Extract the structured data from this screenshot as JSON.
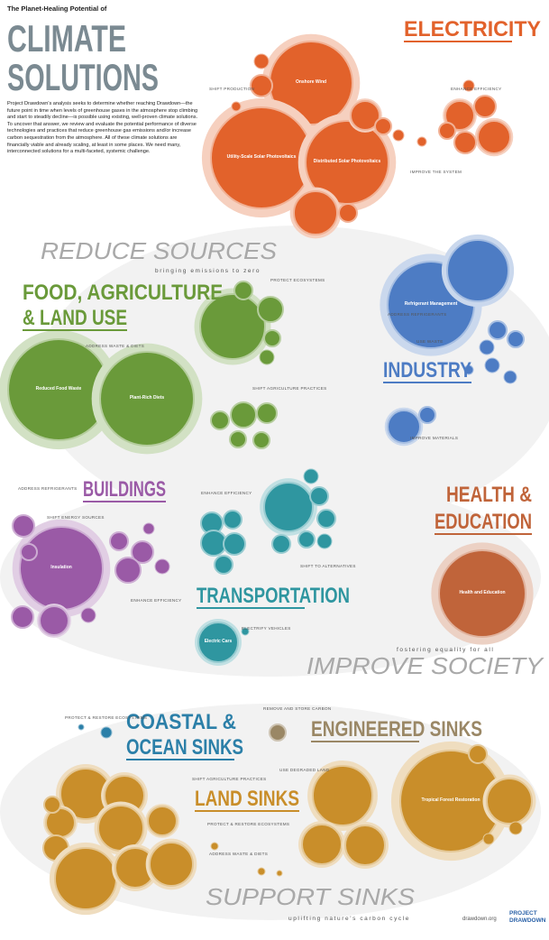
{
  "header": {
    "kicker": "The Planet-Healing Potential of",
    "title_lines": [
      "CLIMATE",
      "SOLUTIONS"
    ],
    "intro": "Project Drawdown's analysis seeks to determine whether reaching Drawdown—the future point in time when levels of greenhouse gases in the atmosphere stop climbing and start to steadily decline—is possible using existing, well-proven climate solutions. To uncover that answer, we review and evaluate the potential performance of diverse technologies and practices that reduce greenhouse gas emissions and/or increase carbon sequestration from the atmosphere. All of these climate solutions are financially viable and already scaling, at least in some places. We need many, interconnected solutions for a multi-faceted, systemic challenge."
  },
  "sections": [
    {
      "heading_lines": [
        "REDUCE SOURCES"
      ],
      "tagline": "bringing emissions to zero"
    },
    {
      "heading_lines": [
        "IMPROVE SOCIETY"
      ],
      "tagline": "fostering equality for all"
    },
    {
      "heading_lines": [
        "SUPPORT SINKS"
      ],
      "tagline": "uplifting nature's carbon cycle"
    }
  ],
  "categories": [
    {
      "heading_lines": [
        "ELECTRICITY"
      ],
      "color": "#e2622b",
      "groups": [
        "ENHANCE EFFICIENCY",
        "SHIFT PRODUCTION",
        "IMPROVE THE SYSTEM"
      ],
      "circles": [
        "Onshore Wind",
        "Utility-Scale Solar Photovoltaics",
        "Distributed Solar Photovoltaics"
      ]
    },
    {
      "heading_lines": [
        "FOOD, AGRICULTURE,",
        "& LAND USE"
      ],
      "color": "#6a9a3a",
      "groups": [
        "ADDRESS WASTE & DIETS",
        "PROTECT ECOSYSTEMS",
        "SHIFT AGRICULTURE PRACTICES"
      ],
      "circles": [
        "Reduced Food Waste",
        "Plant-Rich Diets"
      ]
    },
    {
      "heading_lines": [
        "INDUSTRY"
      ],
      "color": "#4d7cc4",
      "groups": [
        "ADDRESS REFRIGERANTS",
        "USE WASTE",
        "IMPROVE MATERIALS"
      ],
      "circles": [
        "Refrigerant Management"
      ]
    },
    {
      "heading_lines": [
        "BUILDINGS"
      ],
      "color": "#9a5aa6",
      "groups": [
        "ADDRESS REFRIGERANTS",
        "SHIFT ENERGY SOURCES",
        "ENHANCE EFFICIENCY"
      ],
      "circles": [
        "Insulation"
      ]
    },
    {
      "heading_lines": [
        "TRANSPORTATION"
      ],
      "color": "#2f96a0",
      "groups": [
        "ENHANCE EFFICIENCY",
        "SHIFT TO ALTERNATIVES",
        "ELECTRIFY VEHICLES"
      ],
      "circles": [
        "Electric Cars"
      ]
    },
    {
      "heading_lines": [
        "HEALTH &",
        "EDUCATION"
      ],
      "color": "#c0643a",
      "groups": [],
      "circles": [
        "Health and Education"
      ]
    },
    {
      "heading_lines": [
        "COASTAL &",
        "OCEAN SINKS"
      ],
      "color": "#2b7fa8",
      "groups": [
        "PROTECT & RESTORE ECOSYSTEMS"
      ],
      "circles": []
    },
    {
      "heading_lines": [
        "ENGINEERED SINKS"
      ],
      "color": "#9a8765",
      "groups": [
        "REMOVE AND STORE CARBON"
      ],
      "circles": []
    },
    {
      "heading_lines": [
        "LAND SINKS"
      ],
      "color": "#c98e2a",
      "groups": [
        "SHIFT AGRICULTURE PRACTICES",
        "USE DEGRADED LAND",
        "PROTECT & RESTORE ECOSYSTEMS",
        "ADDRESS WASTE & DIETS"
      ],
      "circles": [
        "Tropical Forest Restoration"
      ]
    }
  ],
  "footer": {
    "site": "drawdown.org",
    "logo_lines": [
      "PROJECT",
      "DRAWDOWN"
    ]
  }
}
